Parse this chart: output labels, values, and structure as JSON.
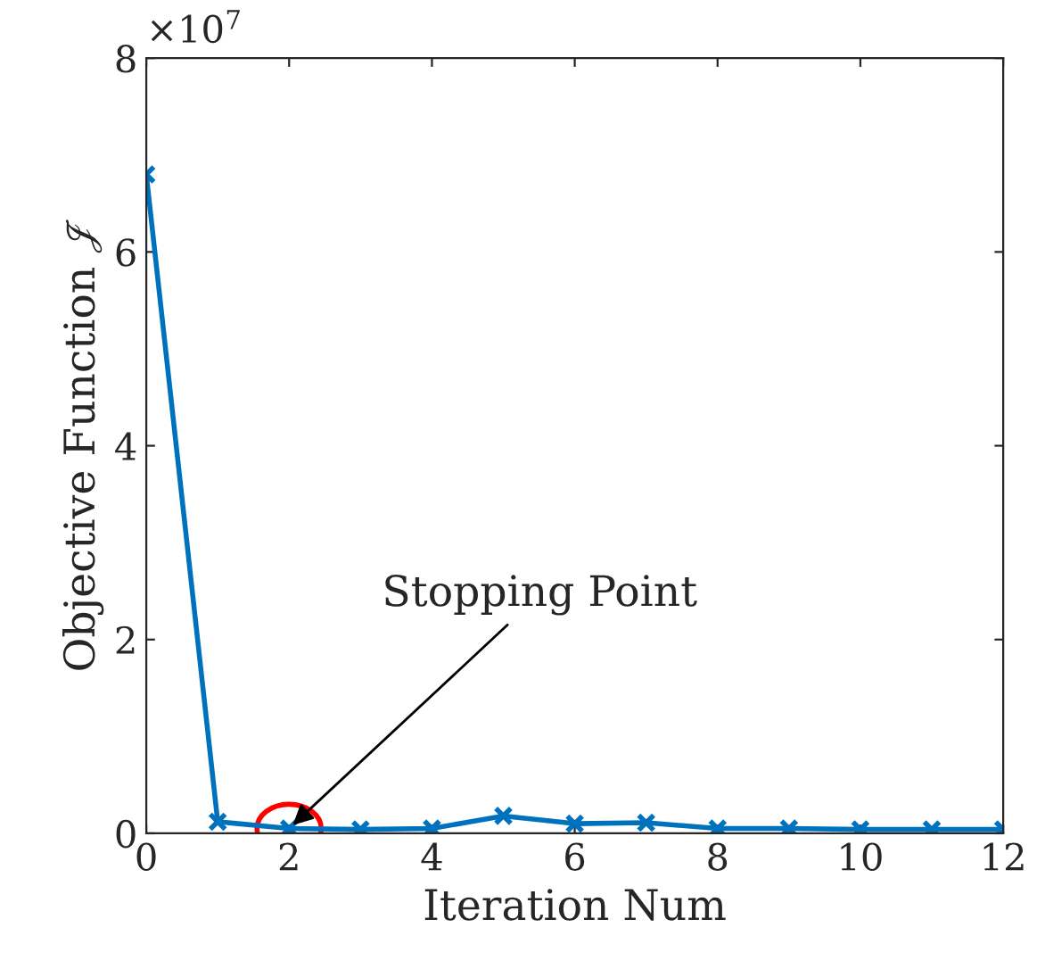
{
  "chart_data": {
    "type": "line",
    "xlabel": "Iteration Num",
    "ylabel": "Objective Function 𝒥",
    "x": [
      0,
      1,
      2,
      3,
      4,
      5,
      6,
      7,
      8,
      9,
      10,
      11,
      12
    ],
    "series": [
      {
        "color": "#0072bd",
        "values": [
          6.8,
          0.12,
          0.05,
          0.04,
          0.05,
          0.18,
          0.1,
          0.11,
          0.05,
          0.05,
          0.04,
          0.04,
          0.04
        ]
      }
    ],
    "xlim": [
      0,
      12
    ],
    "xticks": [
      0,
      2,
      4,
      6,
      8,
      10,
      12
    ],
    "ylim": [
      0,
      8
    ],
    "yticks": [
      0,
      2,
      4,
      6,
      8
    ],
    "annotations": [
      "×10$^{7}$",
      {
        "text": "Stopping Point",
        "x": 2,
        "y": 0.05
      }
    ],
    "marker": "cross",
    "line_style": "solid",
    "grid": false,
    "legend": false
  }
}
